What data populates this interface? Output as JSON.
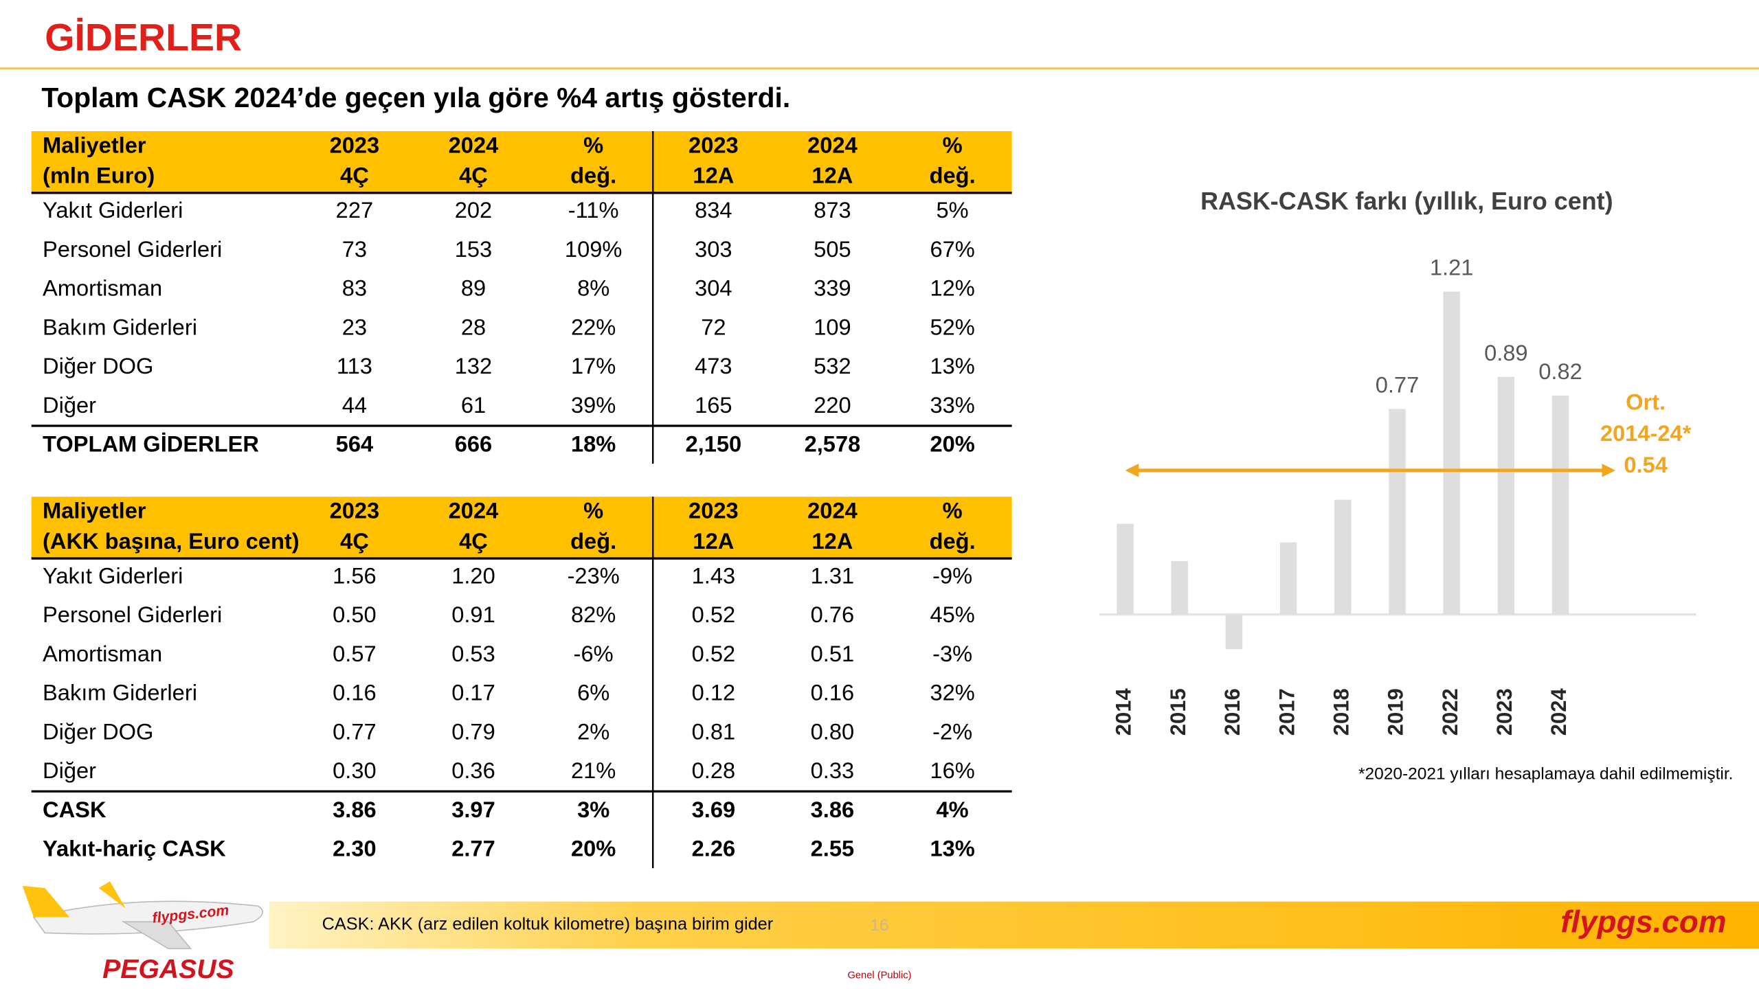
{
  "header": {
    "title": "GİDERLER"
  },
  "subtitle": "Toplam CASK 2024’de geçen yıla göre %4 artış gösterdi.",
  "tables": [
    {
      "header": [
        [
          "Maliyetler",
          "(mln Euro)"
        ],
        [
          "2023",
          "4Ç"
        ],
        [
          "2024",
          "4Ç"
        ],
        [
          "%",
          "değ."
        ],
        [
          "2023",
          "12A"
        ],
        [
          "2024",
          "12A"
        ],
        [
          "%",
          "değ."
        ]
      ],
      "rows": [
        [
          "Yakıt Giderleri",
          "227",
          "202",
          "-11%",
          "834",
          "873",
          "5%"
        ],
        [
          "Personel Giderleri",
          "73",
          "153",
          "109%",
          "303",
          "505",
          "67%"
        ],
        [
          "Amortisman",
          "83",
          "89",
          "8%",
          "304",
          "339",
          "12%"
        ],
        [
          "Bakım Giderleri",
          "23",
          "28",
          "22%",
          "72",
          "109",
          "52%"
        ],
        [
          "Diğer DOG",
          "113",
          "132",
          "17%",
          "473",
          "532",
          "13%"
        ],
        [
          "Diğer",
          "44",
          "61",
          "39%",
          "165",
          "220",
          "33%"
        ]
      ],
      "totals": [
        [
          "TOPLAM GİDERLER",
          "564",
          "666",
          "18%",
          "2,150",
          "2,578",
          "20%"
        ]
      ]
    },
    {
      "header": [
        [
          "Maliyetler",
          "(AKK başına, Euro cent)"
        ],
        [
          "2023",
          "4Ç"
        ],
        [
          "2024",
          "4Ç"
        ],
        [
          "%",
          "değ."
        ],
        [
          "2023",
          "12A"
        ],
        [
          "2024",
          "12A"
        ],
        [
          "%",
          "değ."
        ]
      ],
      "rows": [
        [
          "Yakıt Giderleri",
          "1.56",
          "1.20",
          "-23%",
          "1.43",
          "1.31",
          "-9%"
        ],
        [
          "Personel Giderleri",
          "0.50",
          "0.91",
          "82%",
          "0.52",
          "0.76",
          "45%"
        ],
        [
          "Amortisman",
          "0.57",
          "0.53",
          "-6%",
          "0.52",
          "0.51",
          "-3%"
        ],
        [
          "Bakım Giderleri",
          "0.16",
          "0.17",
          "6%",
          "0.12",
          "0.16",
          "32%"
        ],
        [
          "Diğer DOG",
          "0.77",
          "0.79",
          "2%",
          "0.81",
          "0.80",
          "-2%"
        ],
        [
          "Diğer",
          "0.30",
          "0.36",
          "21%",
          "0.28",
          "0.33",
          "16%"
        ]
      ],
      "totals": [
        [
          "CASK",
          "3.86",
          "3.97",
          "3%",
          "3.69",
          "3.86",
          "4%"
        ],
        [
          "Yakıt-hariç CASK",
          "2.30",
          "2.77",
          "20%",
          "2.26",
          "2.55",
          "13%"
        ]
      ]
    }
  ],
  "chart_data": {
    "type": "bar",
    "title": "RASK-CASK farkı (yıllık, Euro cent)",
    "categories": [
      "2014",
      "2015",
      "2016",
      "2017",
      "2018",
      "2019",
      "2022",
      "2023",
      "2024"
    ],
    "values": [
      0.34,
      0.2,
      -0.13,
      0.27,
      0.43,
      0.77,
      1.21,
      0.89,
      0.82
    ],
    "value_labels": [
      null,
      null,
      null,
      null,
      null,
      "0.77",
      "1.21",
      "0.89",
      "0.82"
    ],
    "color": "#dedede",
    "average": {
      "label": [
        "Ort.",
        "2014-24*"
      ],
      "value": 0.54,
      "color": "#f2a51f"
    },
    "note": "*2020-2021 yılları hesaplamaya dahil edilmemiştir."
  },
  "footer": {
    "definition": "CASK: AKK (arz edilen koltuk kilometre) başına birim gider",
    "page": "16",
    "brand": "flypgs.com",
    "logo_domain": "flypgs.com",
    "logo_name": "PEGASUS",
    "classification": "Genel (Public)"
  }
}
